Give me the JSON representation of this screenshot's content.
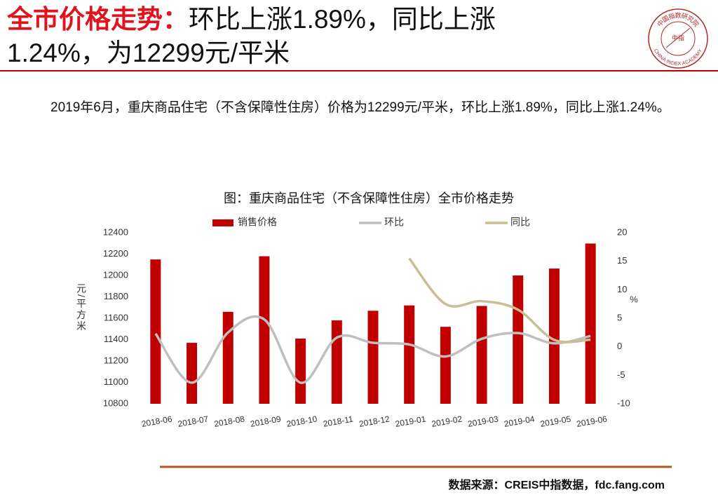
{
  "header": {
    "title_highlight": "全市价格走势：",
    "title": "环比上涨1.89%，同比上涨1.24%，为12299元/平米"
  },
  "logo": {
    "text_cn": "中国指数研究院",
    "text_center": "中指",
    "text_en": "CHINA INDEX ACADEMY"
  },
  "paragraph": "2019年6月，重庆商品住宅（不含保障性住房）价格为12299元/平米，环比上涨1.89%，同比上涨1.24%。",
  "chart_data": {
    "type": "bar",
    "title": "图：重庆商品住宅（不含保障性住房）全市价格走势",
    "categories": [
      "2018-06",
      "2018-07",
      "2018-08",
      "2018-09",
      "2018-10",
      "2018-11",
      "2018-12",
      "2019-01",
      "2019-02",
      "2019-03",
      "2019-04",
      "2019-05",
      "2019-06"
    ],
    "series": [
      {
        "name": "销售价格",
        "type": "bar",
        "color": "#c00000",
        "values": [
          12150,
          11370,
          11660,
          12180,
          11410,
          11580,
          11670,
          11720,
          11520,
          11715,
          12000,
          12065,
          12299
        ]
      },
      {
        "name": "环比",
        "type": "line",
        "axis": "y2",
        "color": "#bfbfbf",
        "values": [
          2.3,
          -6.3,
          2.5,
          4.8,
          -6.3,
          1.6,
          0.7,
          0.4,
          -1.7,
          1.4,
          2.4,
          0.6,
          1.89
        ]
      },
      {
        "name": "同比",
        "type": "line",
        "axis": "y2",
        "color": "#c9bf94",
        "values": [
          null,
          null,
          null,
          null,
          null,
          null,
          null,
          15.5,
          7.5,
          8.0,
          6.5,
          1.2,
          1.24
        ]
      }
    ],
    "ylabel": "元/平方米",
    "y2label": "%",
    "ylim": [
      10800,
      12400
    ],
    "yticks": [
      10800,
      11000,
      11200,
      11400,
      11600,
      11800,
      12000,
      12200,
      12400
    ],
    "y2lim": [
      -10,
      20
    ],
    "y2ticks": [
      -10,
      -5,
      0,
      5,
      10,
      15,
      20
    ],
    "grid": false,
    "legend": "top"
  },
  "source": "数据来源：CREIS中指数据，fdc.fang.com"
}
